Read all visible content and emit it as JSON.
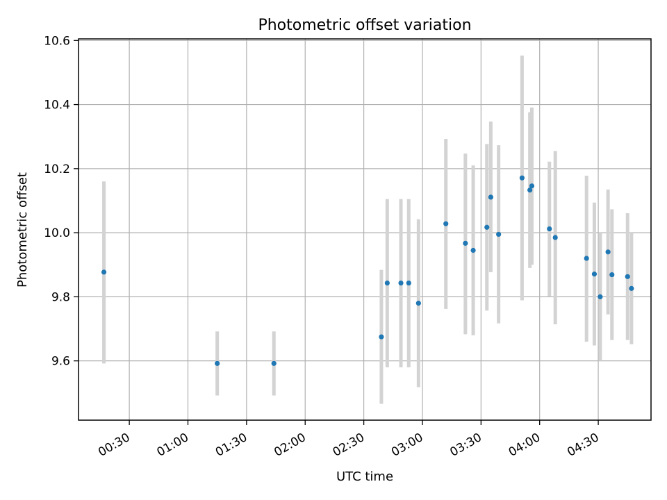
{
  "chart_data": {
    "type": "scatter",
    "title": "Photometric offset variation",
    "xlabel": "UTC time",
    "ylabel": "Photometric offset",
    "xlim": [
      "00:04",
      "04:57"
    ],
    "ylim": [
      9.415,
      10.605
    ],
    "x_ticks": [
      "00:30",
      "01:00",
      "01:30",
      "02:00",
      "02:30",
      "03:00",
      "03:30",
      "04:00",
      "04:30"
    ],
    "y_ticks": [
      "9.6",
      "9.8",
      "10.0",
      "10.2",
      "10.4",
      "10.6"
    ],
    "grid": true,
    "series": [
      {
        "marker_color": "#1f77b4",
        "errorbar_color": "#d3d3d3",
        "points": [
          {
            "x": "00:17",
            "y": 9.877,
            "ylow": 9.592,
            "yhigh": 10.16
          },
          {
            "x": "01:15",
            "y": 9.592,
            "ylow": 9.492,
            "yhigh": 9.692
          },
          {
            "x": "01:44",
            "y": 9.592,
            "ylow": 9.492,
            "yhigh": 9.692
          },
          {
            "x": "02:39",
            "y": 9.675,
            "ylow": 9.466,
            "yhigh": 9.884
          },
          {
            "x": "02:42",
            "y": 9.843,
            "ylow": 9.58,
            "yhigh": 10.105
          },
          {
            "x": "02:49",
            "y": 9.843,
            "ylow": 9.58,
            "yhigh": 10.105
          },
          {
            "x": "02:53",
            "y": 9.843,
            "ylow": 9.58,
            "yhigh": 10.105
          },
          {
            "x": "02:58",
            "y": 9.78,
            "ylow": 9.518,
            "yhigh": 10.042
          },
          {
            "x": "03:12",
            "y": 10.028,
            "ylow": 9.762,
            "yhigh": 10.293
          },
          {
            "x": "03:22",
            "y": 9.967,
            "ylow": 9.683,
            "yhigh": 10.247
          },
          {
            "x": "03:26",
            "y": 9.945,
            "ylow": 9.68,
            "yhigh": 10.21
          },
          {
            "x": "03:33",
            "y": 10.017,
            "ylow": 9.757,
            "yhigh": 10.277
          },
          {
            "x": "03:35",
            "y": 10.111,
            "ylow": 9.877,
            "yhigh": 10.347
          },
          {
            "x": "03:39",
            "y": 9.995,
            "ylow": 9.717,
            "yhigh": 10.273
          },
          {
            "x": "03:51",
            "y": 10.171,
            "ylow": 9.789,
            "yhigh": 10.553
          },
          {
            "x": "03:55",
            "y": 10.133,
            "ylow": 9.89,
            "yhigh": 10.376
          },
          {
            "x": "03:56",
            "y": 10.146,
            "ylow": 9.9,
            "yhigh": 10.391
          },
          {
            "x": "04:05",
            "y": 10.012,
            "ylow": 9.802,
            "yhigh": 10.222
          },
          {
            "x": "04:08",
            "y": 9.985,
            "ylow": 9.714,
            "yhigh": 10.255
          },
          {
            "x": "04:24",
            "y": 9.92,
            "ylow": 9.66,
            "yhigh": 10.178
          },
          {
            "x": "04:28",
            "y": 9.871,
            "ylow": 9.648,
            "yhigh": 10.094
          },
          {
            "x": "04:31",
            "y": 9.8,
            "ylow": 9.6,
            "yhigh": 10.0
          },
          {
            "x": "04:35",
            "y": 9.94,
            "ylow": 9.745,
            "yhigh": 10.135
          },
          {
            "x": "04:37",
            "y": 9.869,
            "ylow": 9.665,
            "yhigh": 10.073
          },
          {
            "x": "04:45",
            "y": 9.863,
            "ylow": 9.665,
            "yhigh": 10.061
          },
          {
            "x": "04:47",
            "y": 9.826,
            "ylow": 9.652,
            "yhigh": 10.0
          }
        ]
      }
    ]
  }
}
